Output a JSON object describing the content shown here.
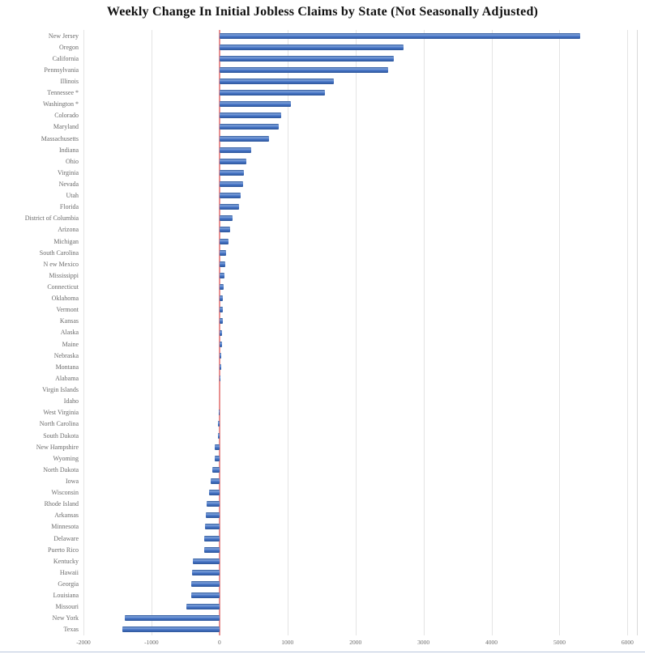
{
  "chart_data": {
    "type": "bar",
    "orientation": "horizontal",
    "title": "Weekly Change In Initial Jobless Claims by State (Not Seasonally Adjusted)",
    "categories": [
      "New Jersey",
      "Oregon",
      "California",
      "Pennsylvania",
      "Illinois",
      "Tennessee *",
      "Washington *",
      "Colorado",
      "Maryland",
      "Massachusetts",
      "Indiana",
      "Ohio",
      "Virginia",
      "Nevada",
      "Utah",
      "Florida",
      "District of Columbia",
      "Arizona",
      "Michigan",
      "South Carolina",
      "N ew Mexico",
      "Mississippi",
      "Connecticut",
      "Oklahoma",
      "Vermont",
      "Kansas",
      "Alaska",
      "Maine",
      "Nebraska",
      "Montana",
      "Alabama",
      "Virgin Islands",
      "Idaho",
      "West Virginia",
      "North Carolina",
      "South Dakota",
      "New Hampshire",
      "Wyoming",
      "North Dakota",
      "Iowa",
      "Wisconsin",
      "Rhode Island",
      "Arkansas",
      "Minnesota",
      "Delaware",
      "Puerto Rico",
      "Kentucky",
      "Hawaii",
      "Georgia",
      "Louisiana",
      "Missouri",
      "New York",
      "Texas"
    ],
    "values": [
      5310,
      2710,
      2560,
      2480,
      1680,
      1550,
      1050,
      905,
      870,
      725,
      465,
      395,
      360,
      350,
      310,
      290,
      190,
      160,
      130,
      95,
      85,
      75,
      65,
      55,
      50,
      45,
      40,
      35,
      30,
      25,
      15,
      5,
      0,
      -10,
      -20,
      -25,
      -65,
      -75,
      -110,
      -130,
      -150,
      -190,
      -205,
      -215,
      -220,
      -230,
      -390,
      -400,
      -410,
      -420,
      -490,
      -1390,
      -1430
    ],
    "xlabel": "",
    "ylabel": "",
    "xlim": [
      -2000,
      6150
    ],
    "x_ticks": [
      -2000,
      -1000,
      0,
      1000,
      2000,
      3000,
      4000,
      5000,
      6000
    ],
    "grid": true,
    "legend": "none",
    "colors": {
      "bar": "#4472c4",
      "bar_dark": "#2d5699",
      "bar_light": "#7fa3dc",
      "zero_line": "#e88f8f",
      "gridline": "#e4e4e4",
      "plot_edge": "#d9d9d9",
      "label": "#6b6b6b",
      "title": "#111111",
      "bottom_border": "#b9c6dd"
    }
  }
}
